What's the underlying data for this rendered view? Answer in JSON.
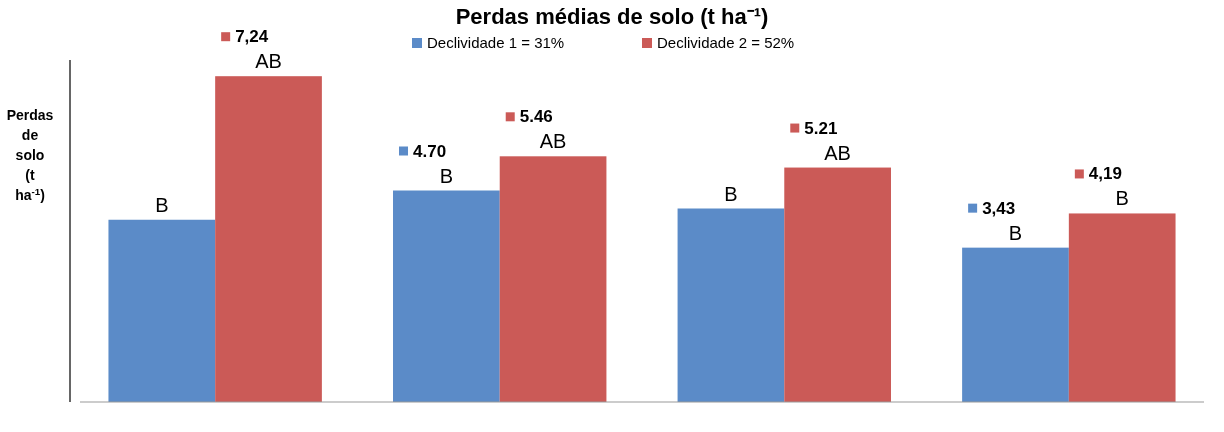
{
  "chart_data": {
    "type": "bar",
    "title": "Perdas médias de solo (t ha⁻¹)",
    "ylabel": "Perdas de solo (t ha$^{-1}$)",
    "categories": [
      null,
      null,
      null,
      null
    ],
    "series": [
      {
        "name": "Declividade 1 = 31%",
        "color": "#5b8bc8",
        "values": [
          4.05,
          4.7,
          4.3,
          3.43
        ],
        "value_labels": [
          null,
          "4.70",
          null,
          "3,43"
        ]
      },
      {
        "name": "Declividade 2 = 52%",
        "color": "#cb5a57",
        "values": [
          7.24,
          5.46,
          5.21,
          4.19
        ],
        "value_labels": [
          "7,24",
          "5.46",
          "5.21",
          "4,19"
        ]
      }
    ],
    "ylim": [
      0,
      7.6
    ],
    "legend": "top",
    "annotations": [
      "B",
      "AB",
      "B",
      "AB",
      "B",
      "AB",
      "B",
      "B"
    ]
  }
}
